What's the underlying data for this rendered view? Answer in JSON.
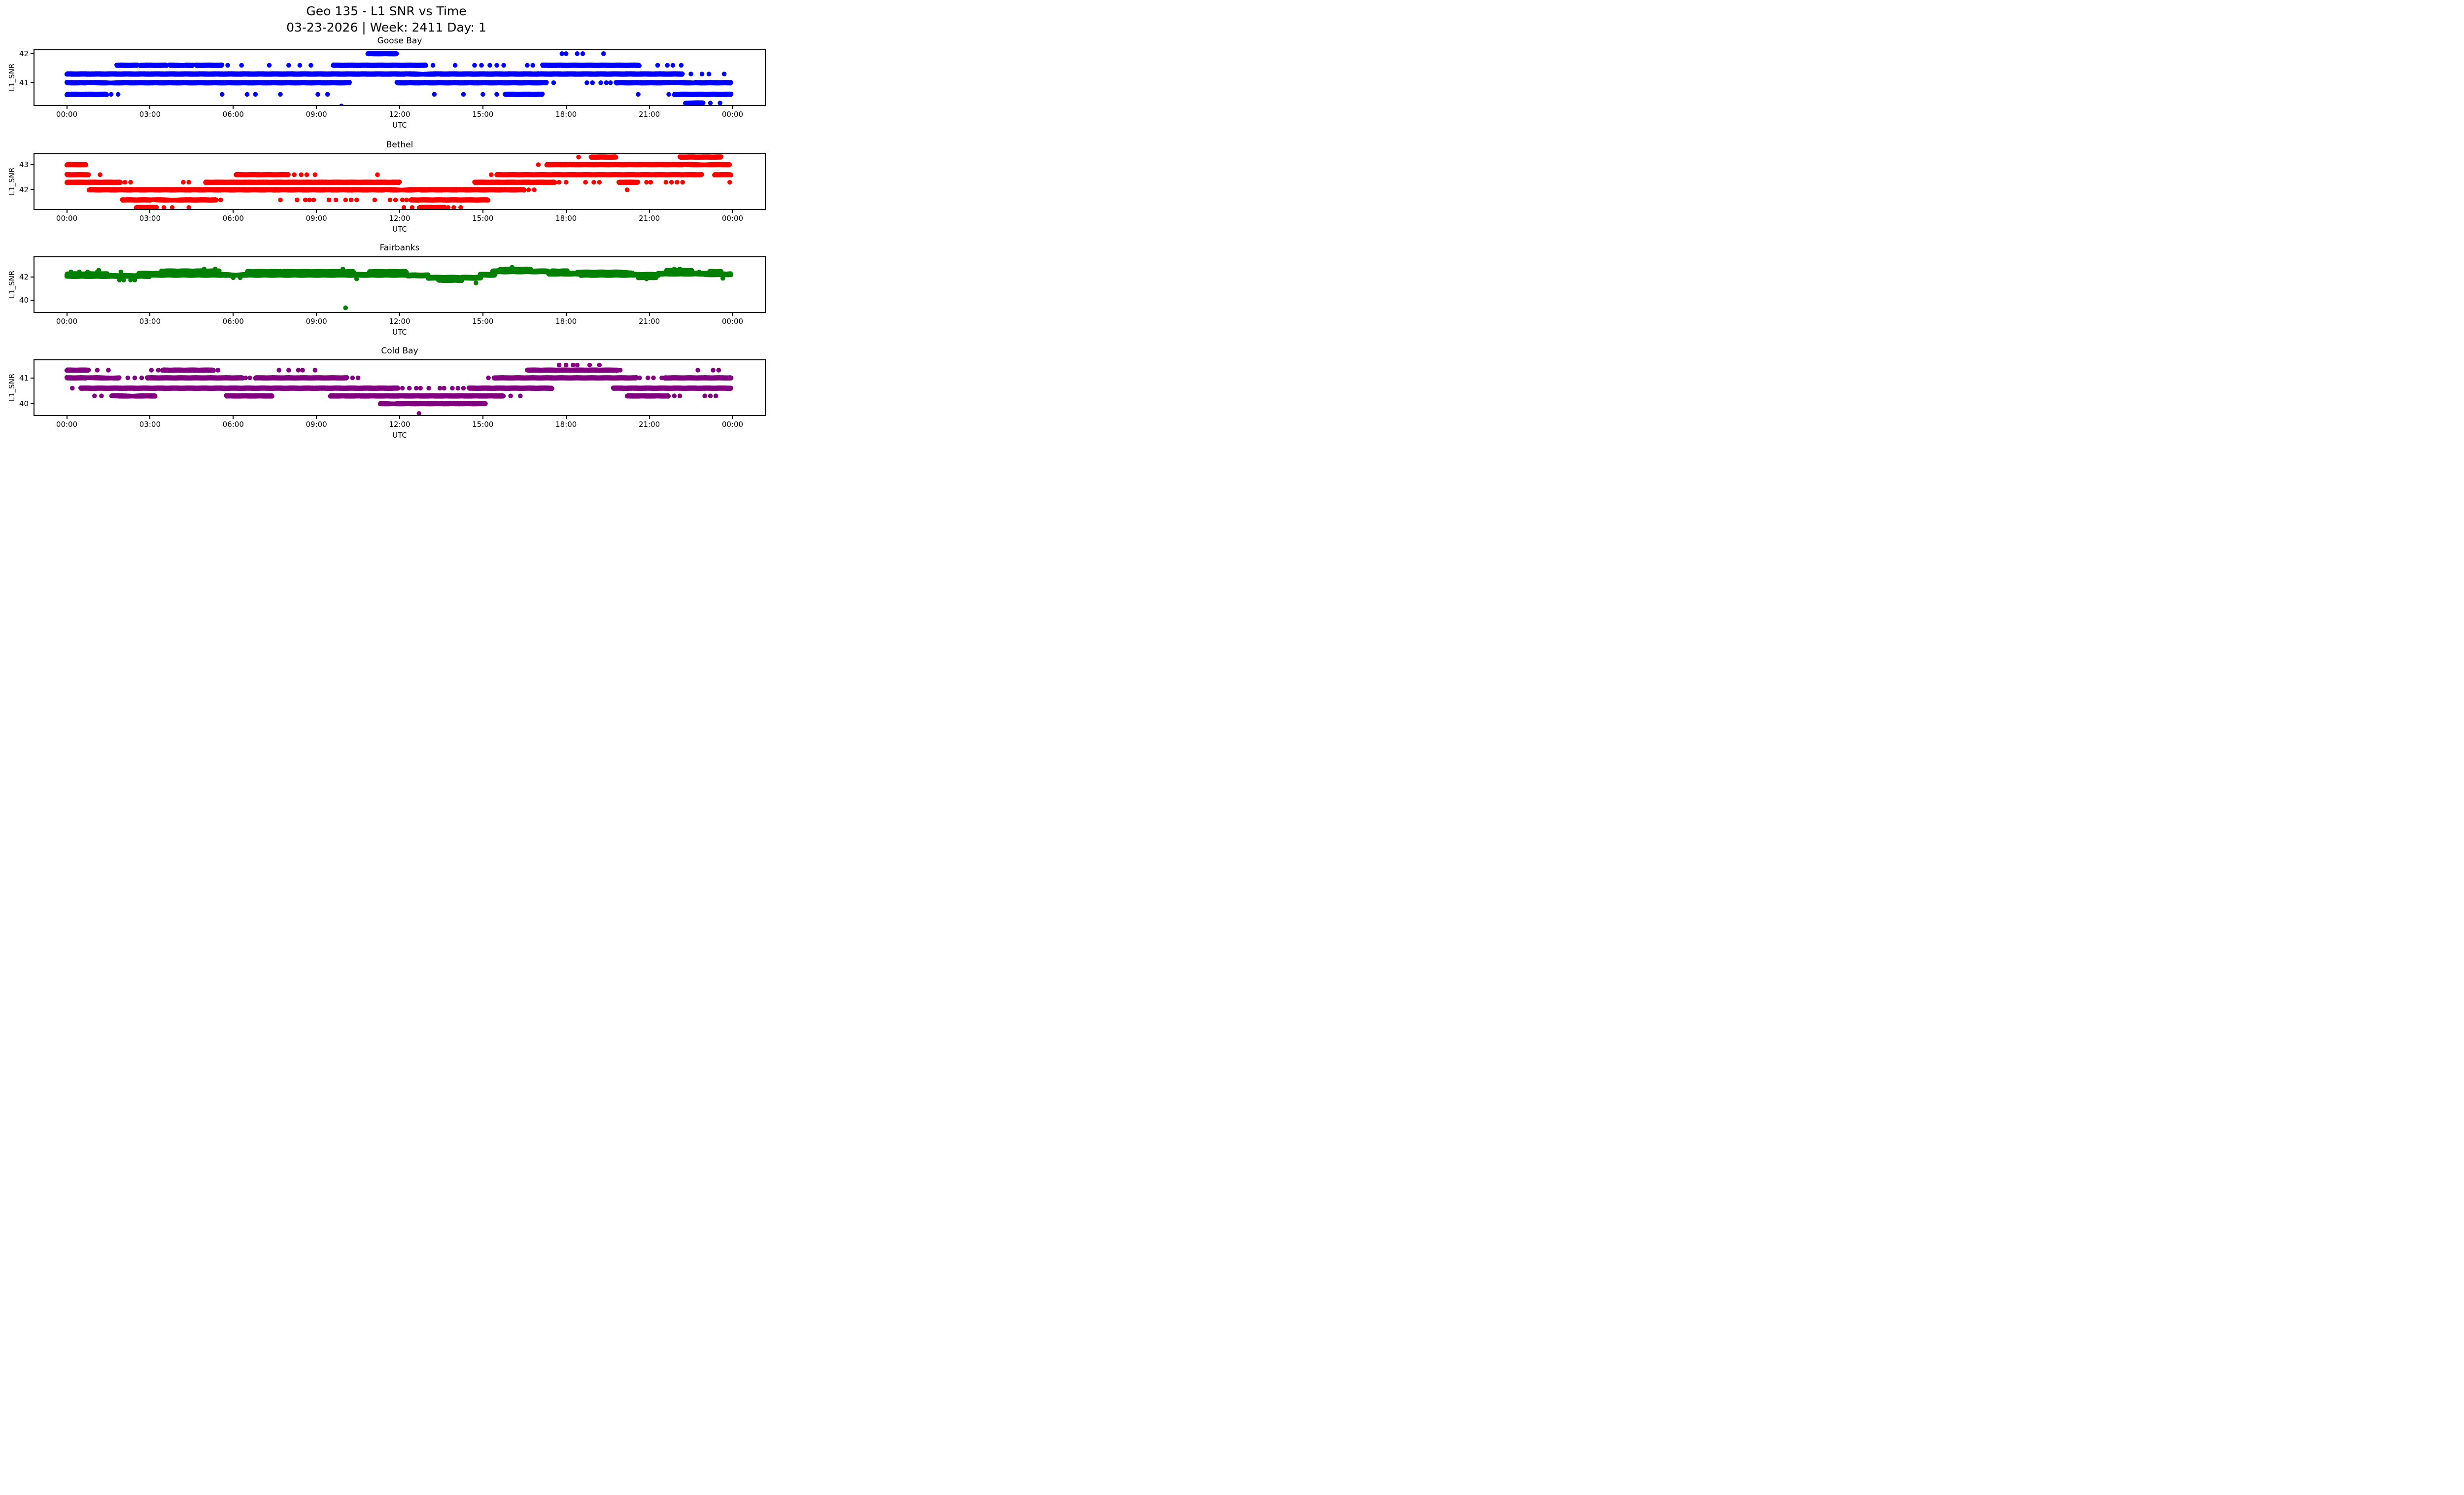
{
  "chart_data": {
    "type": "scatter",
    "suptitle": "Geo 135 - L1 SNR vs Time",
    "subtitle_line2": "03-23-2026 | Week: 2411 Day: 1",
    "xlabel": "UTC",
    "ylabel": "L1_SNR",
    "grid": false,
    "legend": "none",
    "x_tick_labels": [
      "00:00",
      "03:00",
      "06:00",
      "09:00",
      "12:00",
      "15:00",
      "18:00",
      "21:00",
      "00:00"
    ],
    "x_tick_hours": [
      0,
      3,
      6,
      9,
      12,
      15,
      18,
      21,
      24
    ],
    "x_range_hours": [
      -1.2,
      25.2
    ],
    "subplots": [
      {
        "title": "Goose Bay",
        "color": "#0000ff",
        "ylim": [
          40.2,
          42.15
        ],
        "yticks": [
          41,
          42
        ],
        "spread": 0.015,
        "runs": [
          [
            42.0,
            10.85,
            11.9
          ],
          [
            41.6,
            1.8,
            2.55
          ],
          [
            41.6,
            2.65,
            3.6
          ],
          [
            41.6,
            3.7,
            4.55
          ],
          [
            41.6,
            4.65,
            5.6
          ],
          [
            41.6,
            9.6,
            12.95
          ],
          [
            41.6,
            17.15,
            20.65
          ],
          [
            41.3,
            0.0,
            22.2
          ],
          [
            41.0,
            0.0,
            10.2
          ],
          [
            41.0,
            11.9,
            17.3
          ],
          [
            41.0,
            19.8,
            23.95
          ],
          [
            40.6,
            0.0,
            1.45
          ],
          [
            40.6,
            15.8,
            17.15
          ],
          [
            40.6,
            21.9,
            23.95
          ],
          [
            40.3,
            22.3,
            22.95
          ]
        ],
        "points": [
          [
            17.85,
            42.0
          ],
          [
            18.0,
            42.0
          ],
          [
            18.4,
            42.0
          ],
          [
            18.6,
            42.0
          ],
          [
            19.35,
            42.0
          ],
          [
            5.8,
            41.6
          ],
          [
            6.3,
            41.6
          ],
          [
            7.3,
            41.6
          ],
          [
            8.0,
            41.6
          ],
          [
            8.4,
            41.6
          ],
          [
            8.8,
            41.6
          ],
          [
            13.2,
            41.6
          ],
          [
            14.0,
            41.6
          ],
          [
            14.7,
            41.6
          ],
          [
            14.95,
            41.6
          ],
          [
            15.25,
            41.6
          ],
          [
            15.5,
            41.6
          ],
          [
            15.75,
            41.6
          ],
          [
            16.6,
            41.6
          ],
          [
            16.8,
            41.6
          ],
          [
            21.3,
            41.6
          ],
          [
            21.65,
            41.6
          ],
          [
            21.85,
            41.6
          ],
          [
            22.15,
            41.6
          ],
          [
            22.5,
            41.3
          ],
          [
            22.9,
            41.3
          ],
          [
            23.15,
            41.3
          ],
          [
            23.7,
            41.3
          ],
          [
            17.55,
            41.0
          ],
          [
            18.75,
            41.0
          ],
          [
            18.95,
            41.0
          ],
          [
            19.25,
            41.0
          ],
          [
            19.45,
            41.0
          ],
          [
            19.6,
            41.0
          ],
          [
            1.6,
            40.6
          ],
          [
            1.85,
            40.6
          ],
          [
            5.6,
            40.6
          ],
          [
            6.5,
            40.6
          ],
          [
            6.8,
            40.6
          ],
          [
            7.7,
            40.6
          ],
          [
            9.05,
            40.6
          ],
          [
            9.4,
            40.6
          ],
          [
            13.25,
            40.6
          ],
          [
            14.3,
            40.6
          ],
          [
            15.0,
            40.6
          ],
          [
            15.5,
            40.6
          ],
          [
            20.6,
            40.6
          ],
          [
            21.7,
            40.6
          ],
          [
            23.2,
            40.3
          ],
          [
            23.55,
            40.3
          ],
          [
            9.9,
            40.2
          ]
        ]
      },
      {
        "title": "Bethel",
        "color": "#ff0000",
        "ylim": [
          41.2,
          43.45
        ],
        "yticks": [
          42,
          43
        ],
        "spread": 0.015,
        "runs": [
          [
            43.3,
            18.9,
            19.8
          ],
          [
            43.3,
            22.1,
            23.6
          ],
          [
            43.0,
            0.0,
            0.7
          ],
          [
            43.0,
            17.3,
            23.9
          ],
          [
            42.6,
            0.0,
            0.8
          ],
          [
            42.6,
            6.1,
            8.0
          ],
          [
            42.6,
            15.5,
            22.9
          ],
          [
            42.6,
            23.35,
            23.95
          ],
          [
            42.3,
            0.0,
            1.95
          ],
          [
            42.3,
            5.0,
            12.0
          ],
          [
            42.3,
            14.7,
            17.6
          ],
          [
            42.3,
            19.9,
            20.6
          ],
          [
            42.0,
            0.8,
            16.5
          ],
          [
            41.6,
            2.0,
            5.4
          ],
          [
            41.6,
            12.4,
            15.2
          ],
          [
            41.3,
            2.5,
            3.25
          ],
          [
            41.3,
            12.7,
            13.65
          ]
        ],
        "points": [
          [
            18.45,
            43.3
          ],
          [
            17.0,
            43.0
          ],
          [
            1.2,
            42.6
          ],
          [
            8.2,
            42.6
          ],
          [
            8.45,
            42.6
          ],
          [
            8.65,
            42.6
          ],
          [
            8.95,
            42.6
          ],
          [
            11.2,
            42.6
          ],
          [
            15.3,
            42.6
          ],
          [
            2.1,
            42.3
          ],
          [
            2.3,
            42.3
          ],
          [
            4.2,
            42.3
          ],
          [
            4.4,
            42.3
          ],
          [
            17.75,
            42.3
          ],
          [
            18.0,
            42.3
          ],
          [
            18.7,
            42.3
          ],
          [
            19.0,
            42.3
          ],
          [
            19.2,
            42.3
          ],
          [
            20.9,
            42.3
          ],
          [
            21.05,
            42.3
          ],
          [
            21.6,
            42.3
          ],
          [
            21.8,
            42.3
          ],
          [
            22.0,
            42.3
          ],
          [
            22.2,
            42.3
          ],
          [
            23.9,
            42.3
          ],
          [
            16.65,
            42.0
          ],
          [
            16.85,
            42.0
          ],
          [
            20.2,
            42.0
          ],
          [
            5.55,
            41.6
          ],
          [
            7.7,
            41.6
          ],
          [
            8.3,
            41.6
          ],
          [
            8.6,
            41.6
          ],
          [
            8.75,
            41.6
          ],
          [
            8.9,
            41.6
          ],
          [
            9.45,
            41.6
          ],
          [
            9.7,
            41.6
          ],
          [
            10.05,
            41.6
          ],
          [
            10.25,
            41.6
          ],
          [
            10.45,
            41.6
          ],
          [
            11.1,
            41.6
          ],
          [
            11.65,
            41.6
          ],
          [
            11.85,
            41.6
          ],
          [
            12.1,
            41.6
          ],
          [
            12.25,
            41.6
          ],
          [
            3.5,
            41.3
          ],
          [
            3.8,
            41.3
          ],
          [
            4.4,
            41.3
          ],
          [
            12.15,
            41.3
          ],
          [
            12.45,
            41.3
          ],
          [
            13.75,
            41.3
          ],
          [
            13.95,
            41.3
          ],
          [
            14.2,
            41.3
          ]
        ]
      },
      {
        "title": "Fairbanks",
        "color": "#008000",
        "ylim": [
          38.9,
          43.8
        ],
        "yticks": [
          40,
          42
        ],
        "spread": 0.06,
        "runs": [
          [
            42.1,
            0.0,
            3.0
          ],
          [
            42.25,
            0.0,
            1.5
          ],
          [
            42.3,
            2.6,
            3.35
          ],
          [
            42.2,
            3.0,
            5.6
          ],
          [
            42.5,
            3.4,
            5.5
          ],
          [
            42.2,
            5.6,
            9.9
          ],
          [
            42.45,
            6.5,
            9.9
          ],
          [
            42.2,
            9.9,
            12.3
          ],
          [
            42.45,
            9.95,
            10.35
          ],
          [
            42.45,
            10.9,
            12.25
          ],
          [
            42.15,
            12.3,
            13.05
          ],
          [
            41.95,
            13.0,
            14.95
          ],
          [
            41.75,
            13.4,
            14.25
          ],
          [
            42.2,
            14.9,
            15.45
          ],
          [
            42.5,
            15.35,
            17.35
          ],
          [
            42.65,
            15.6,
            16.75
          ],
          [
            42.3,
            17.35,
            18.45
          ],
          [
            42.5,
            17.5,
            18.05
          ],
          [
            42.4,
            18.4,
            20.4
          ],
          [
            42.2,
            18.5,
            20.45
          ],
          [
            42.2,
            20.4,
            21.35
          ],
          [
            42.0,
            20.6,
            21.25
          ],
          [
            42.3,
            21.3,
            23.1
          ],
          [
            42.55,
            21.6,
            22.55
          ],
          [
            42.25,
            23.0,
            23.95
          ],
          [
            42.45,
            23.15,
            23.6
          ]
        ],
        "points": [
          [
            0.15,
            42.45
          ],
          [
            0.45,
            42.45
          ],
          [
            0.75,
            42.45
          ],
          [
            1.1,
            42.45
          ],
          [
            1.95,
            42.45
          ],
          [
            1.15,
            42.6
          ],
          [
            1.9,
            41.75
          ],
          [
            2.05,
            41.75
          ],
          [
            2.3,
            41.75
          ],
          [
            2.45,
            41.75
          ],
          [
            4.95,
            42.7
          ],
          [
            5.35,
            42.7
          ],
          [
            9.95,
            42.7
          ],
          [
            21.9,
            42.7
          ],
          [
            22.1,
            42.7
          ],
          [
            6.0,
            41.95
          ],
          [
            6.25,
            41.95
          ],
          [
            16.05,
            42.85
          ],
          [
            14.75,
            41.5
          ],
          [
            10.45,
            41.85
          ],
          [
            20.9,
            41.85
          ],
          [
            23.65,
            41.9
          ],
          [
            22.8,
            42.45
          ],
          [
            23.4,
            42.45
          ],
          [
            10.05,
            39.35
          ]
        ]
      },
      {
        "title": "Cold Bay",
        "color": "#800080",
        "ylim": [
          39.52,
          41.72
        ],
        "yticks": [
          40,
          41
        ],
        "spread": 0.015,
        "runs": [
          [
            41.3,
            0.0,
            0.8
          ],
          [
            41.3,
            3.45,
            5.3
          ],
          [
            41.3,
            16.6,
            19.85
          ],
          [
            41.0,
            0.0,
            1.9
          ],
          [
            41.0,
            2.9,
            6.35
          ],
          [
            41.0,
            6.8,
            10.1
          ],
          [
            41.0,
            15.4,
            20.55
          ],
          [
            41.0,
            21.55,
            23.95
          ],
          [
            40.6,
            0.5,
            11.95
          ],
          [
            40.6,
            14.5,
            17.5
          ],
          [
            40.6,
            19.7,
            23.95
          ],
          [
            40.3,
            1.6,
            3.2
          ],
          [
            40.3,
            5.75,
            7.4
          ],
          [
            40.3,
            9.5,
            15.75
          ],
          [
            40.3,
            20.2,
            21.7
          ],
          [
            40.0,
            11.3,
            15.1
          ]
        ],
        "points": [
          [
            17.75,
            41.5
          ],
          [
            18.0,
            41.5
          ],
          [
            18.25,
            41.5
          ],
          [
            18.4,
            41.5
          ],
          [
            18.85,
            41.5
          ],
          [
            19.2,
            41.5
          ],
          [
            1.1,
            41.3
          ],
          [
            1.5,
            41.3
          ],
          [
            3.05,
            41.3
          ],
          [
            3.3,
            41.3
          ],
          [
            5.45,
            41.3
          ],
          [
            7.65,
            41.3
          ],
          [
            8.0,
            41.3
          ],
          [
            8.35,
            41.3
          ],
          [
            8.5,
            41.3
          ],
          [
            8.95,
            41.3
          ],
          [
            19.95,
            41.3
          ],
          [
            22.75,
            41.3
          ],
          [
            23.3,
            41.3
          ],
          [
            23.5,
            41.3
          ],
          [
            2.2,
            41.0
          ],
          [
            2.45,
            41.0
          ],
          [
            2.7,
            41.0
          ],
          [
            6.45,
            41.0
          ],
          [
            6.6,
            41.0
          ],
          [
            10.3,
            41.0
          ],
          [
            10.5,
            41.0
          ],
          [
            15.2,
            41.0
          ],
          [
            20.65,
            41.0
          ],
          [
            20.95,
            41.0
          ],
          [
            21.15,
            41.0
          ],
          [
            21.45,
            41.0
          ],
          [
            0.2,
            40.6
          ],
          [
            12.1,
            40.6
          ],
          [
            12.35,
            40.6
          ],
          [
            12.6,
            40.6
          ],
          [
            12.75,
            40.6
          ],
          [
            13.05,
            40.6
          ],
          [
            13.45,
            40.6
          ],
          [
            13.6,
            40.6
          ],
          [
            13.9,
            40.6
          ],
          [
            14.1,
            40.6
          ],
          [
            14.3,
            40.6
          ],
          [
            1.0,
            40.3
          ],
          [
            1.25,
            40.3
          ],
          [
            16.0,
            40.3
          ],
          [
            16.35,
            40.3
          ],
          [
            21.9,
            40.3
          ],
          [
            22.1,
            40.3
          ],
          [
            23.0,
            40.3
          ],
          [
            23.2,
            40.3
          ],
          [
            23.4,
            40.3
          ],
          [
            12.7,
            39.62
          ]
        ]
      }
    ]
  }
}
